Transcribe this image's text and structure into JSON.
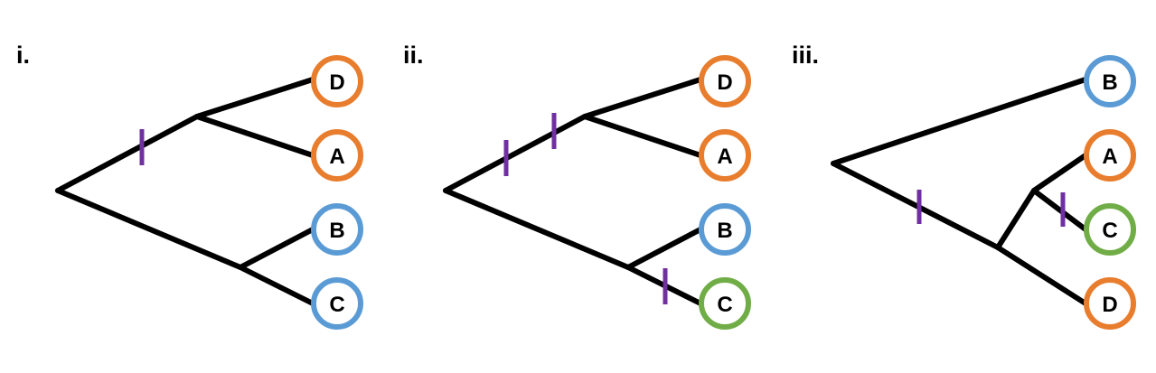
{
  "colors": {
    "orange": "#E87D2E",
    "blue": "#5B9BD5",
    "green": "#70AD47",
    "tick": "#7030A0",
    "branch": "#000000"
  },
  "panels": [
    {
      "label": "i.",
      "leaves": [
        {
          "label": "D",
          "color": "orange"
        },
        {
          "label": "A",
          "color": "orange"
        },
        {
          "label": "B",
          "color": "blue"
        },
        {
          "label": "C",
          "color": "blue"
        }
      ]
    },
    {
      "label": "ii.",
      "leaves": [
        {
          "label": "D",
          "color": "orange"
        },
        {
          "label": "A",
          "color": "orange"
        },
        {
          "label": "B",
          "color": "blue"
        },
        {
          "label": "C",
          "color": "green"
        }
      ]
    },
    {
      "label": "iii.",
      "leaves": [
        {
          "label": "B",
          "color": "blue"
        },
        {
          "label": "A",
          "color": "orange"
        },
        {
          "label": "C",
          "color": "green"
        },
        {
          "label": "D",
          "color": "orange"
        }
      ]
    }
  ]
}
